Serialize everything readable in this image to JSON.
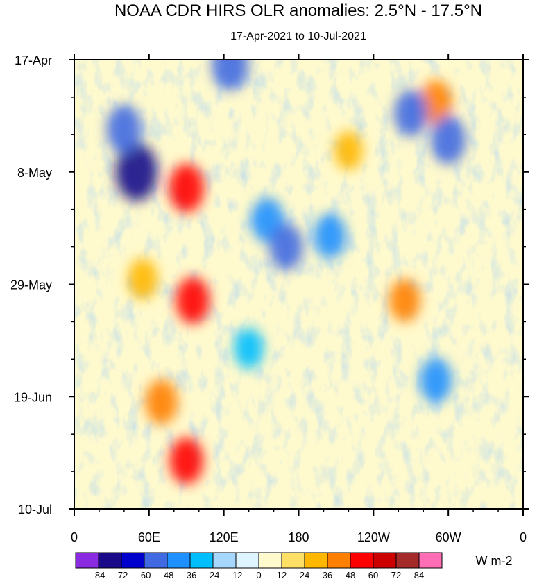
{
  "chart_data": {
    "type": "heatmap",
    "title": "NOAA CDR HIRS OLR anomalies: 2.5°N - 17.5°N",
    "subtitle": "17-Apr-2021 to 10-Jul-2021",
    "xlabel": "",
    "ylabel": "",
    "x_ticks": [
      "0",
      "60E",
      "120E",
      "180",
      "120W",
      "60W",
      "0"
    ],
    "x_range_deg_east": [
      0,
      360
    ],
    "y_ticks": [
      "17-Apr",
      "8-May",
      "29-May",
      "19-Jun",
      "10-Jul"
    ],
    "y_range": [
      "2021-04-17",
      "2021-07-10"
    ],
    "y_direction": "time increases downward",
    "colorbar": {
      "units": "W m-2",
      "labels": [
        "-84",
        "-72",
        "-60",
        "-48",
        "-36",
        "-24",
        "-12",
        "0",
        "12",
        "24",
        "36",
        "48",
        "60",
        "72",
        "84"
      ],
      "colors": [
        "#8a2be2",
        "#1a0a8a",
        "#0000cd",
        "#4169e1",
        "#1e90ff",
        "#00bfff",
        "#a6d8ff",
        "#def4ff",
        "#fffacd",
        "#ffe066",
        "#ffb700",
        "#ff7f00",
        "#ff0000",
        "#cd0000",
        "#a52a2a",
        "#ff6eb4"
      ]
    },
    "features": [
      {
        "lon": 50,
        "date": "2021-05-08",
        "anomaly": -80
      },
      {
        "lon": 40,
        "date": "2021-04-30",
        "anomaly": -55
      },
      {
        "lon": 125,
        "date": "2021-04-18",
        "anomaly": -60
      },
      {
        "lon": 90,
        "date": "2021-05-11",
        "anomaly": 55
      },
      {
        "lon": 95,
        "date": "2021-06-01",
        "anomaly": 50
      },
      {
        "lon": 70,
        "date": "2021-06-20",
        "anomaly": 45
      },
      {
        "lon": 90,
        "date": "2021-07-01",
        "anomaly": 50
      },
      {
        "lon": 55,
        "date": "2021-05-28",
        "anomaly": 35
      },
      {
        "lon": 290,
        "date": "2021-04-25",
        "anomaly": 45
      },
      {
        "lon": 265,
        "date": "2021-06-01",
        "anomaly": 40
      },
      {
        "lon": 220,
        "date": "2021-05-04",
        "anomaly": 30
      },
      {
        "lon": 155,
        "date": "2021-05-17",
        "anomaly": -45
      },
      {
        "lon": 170,
        "date": "2021-05-22",
        "anomaly": -50
      },
      {
        "lon": 205,
        "date": "2021-05-20",
        "anomaly": -45
      },
      {
        "lon": 270,
        "date": "2021-04-27",
        "anomaly": -50
      },
      {
        "lon": 300,
        "date": "2021-05-02",
        "anomaly": -55
      },
      {
        "lon": 290,
        "date": "2021-06-16",
        "anomaly": -45
      },
      {
        "lon": 140,
        "date": "2021-06-10",
        "anomaly": -35
      }
    ]
  }
}
